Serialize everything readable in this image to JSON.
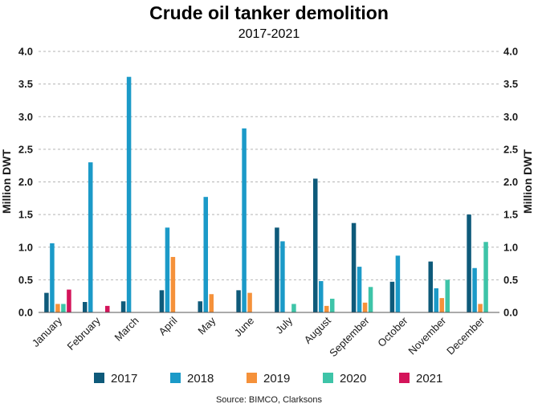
{
  "chart_data": {
    "type": "bar",
    "title": "Crude oil tanker demolition",
    "subtitle": "2017-2021",
    "ylabel": "Million DWT",
    "ylabel_right": "Million DWT",
    "ylim": [
      0,
      4.0
    ],
    "yticks": [
      "0.0",
      "0.5",
      "1.0",
      "1.5",
      "2.0",
      "2.5",
      "3.0",
      "3.5",
      "4.0"
    ],
    "grid": true,
    "legend_position": "bottom",
    "source": "Source: BIMCO, Clarksons",
    "categories": [
      "January",
      "February",
      "March",
      "April",
      "May",
      "June",
      "July",
      "August",
      "September",
      "October",
      "November",
      "December"
    ],
    "series": [
      {
        "name": "2017",
        "color": "#0e5a7a",
        "values": [
          0.3,
          0.16,
          0.17,
          0.34,
          0.17,
          0.34,
          1.3,
          2.05,
          1.37,
          0.47,
          0.78,
          1.5
        ]
      },
      {
        "name": "2018",
        "color": "#1b9ac8",
        "values": [
          1.06,
          2.3,
          3.61,
          1.3,
          1.77,
          2.82,
          1.09,
          0.48,
          0.7,
          0.87,
          0.37,
          0.68
        ]
      },
      {
        "name": "2019",
        "color": "#f5913a",
        "values": [
          0.13,
          0,
          0,
          0.85,
          0.28,
          0.3,
          0,
          0.1,
          0.15,
          0,
          0.22,
          0.13
        ]
      },
      {
        "name": "2020",
        "color": "#3ec4a8",
        "values": [
          0.13,
          0,
          0,
          0,
          0,
          0,
          0.13,
          0.21,
          0.39,
          0,
          0.5,
          1.08
        ]
      },
      {
        "name": "2021",
        "color": "#d4145a",
        "values": [
          0.35,
          0.1,
          0,
          0,
          0,
          0,
          0,
          0,
          0,
          0,
          0,
          0
        ]
      }
    ]
  }
}
